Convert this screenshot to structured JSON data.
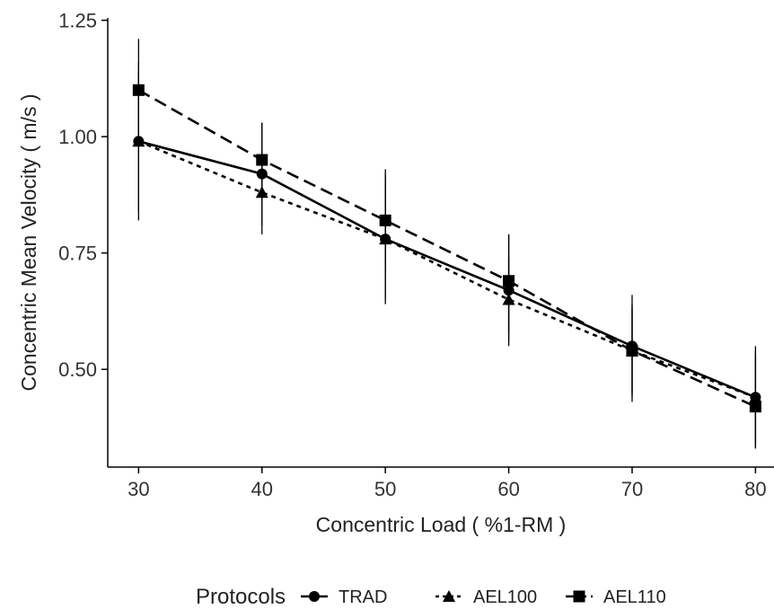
{
  "chart_data": {
    "type": "line",
    "title": "",
    "xlabel": "Concentric Load ( %1-RM )",
    "ylabel": "Concentric Mean Velocity ( m/s )",
    "x": [
      30,
      40,
      50,
      60,
      70,
      80
    ],
    "x_ticks": [
      "30",
      "40",
      "50",
      "60",
      "70",
      "80"
    ],
    "y_ticks": [
      "0.50",
      "0.75",
      "1.00",
      "1.25"
    ],
    "xlim": [
      27.5,
      81.5
    ],
    "ylim": [
      0.29,
      1.255
    ],
    "grid": false,
    "legend": {
      "title": "Protocols",
      "placement": "bottom"
    },
    "series": [
      {
        "name": "TRAD",
        "marker": "circle",
        "line_style": "solid",
        "color": "#000000",
        "values": [
          0.99,
          0.92,
          0.78,
          0.67,
          0.55,
          0.44
        ],
        "error": [
          [
            0.82,
            1.16
          ],
          [
            0.81,
            1.03
          ],
          [
            0.64,
            0.92
          ],
          [
            0.55,
            0.79
          ],
          [
            0.44,
            0.66
          ],
          [
            0.33,
            0.55
          ]
        ]
      },
      {
        "name": "AEL100",
        "marker": "triangle",
        "line_style": "dotted",
        "color": "#000000",
        "values": [
          0.99,
          0.88,
          0.78,
          0.65,
          0.54,
          0.44
        ],
        "error": [
          [
            0.84,
            1.14
          ],
          [
            0.79,
            0.97
          ],
          [
            0.65,
            0.91
          ],
          [
            0.56,
            0.74
          ],
          [
            0.45,
            0.63
          ],
          [
            0.34,
            0.54
          ]
        ]
      },
      {
        "name": "AEL110",
        "marker": "square",
        "line_style": "dashed",
        "color": "#000000",
        "values": [
          1.1,
          0.95,
          0.82,
          0.69,
          0.54,
          0.42
        ],
        "error": [
          [
            1.0,
            1.21
          ],
          [
            0.87,
            1.03
          ],
          [
            0.71,
            0.93
          ],
          [
            0.58,
            0.79
          ],
          [
            0.43,
            0.64
          ],
          [
            0.33,
            0.53
          ]
        ]
      }
    ]
  }
}
